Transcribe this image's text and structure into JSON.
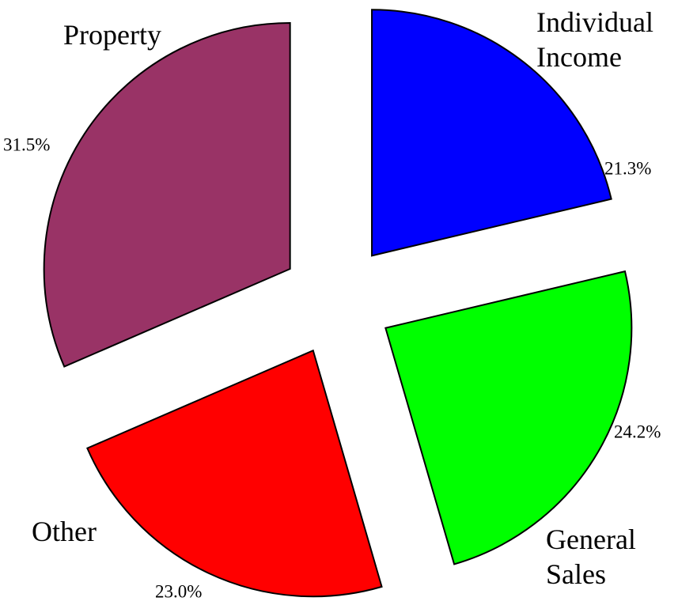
{
  "chart_data": {
    "type": "pie",
    "categories": [
      "Individual Income",
      "General Sales",
      "Other",
      "Property"
    ],
    "values": [
      21.3,
      24.2,
      23.0,
      31.5
    ],
    "value_labels": [
      "21.3%",
      "24.2%",
      "23.0%",
      "31.5%"
    ],
    "colors": [
      "#0000ff",
      "#00ff00",
      "#ff0000",
      "#993366"
    ]
  }
}
